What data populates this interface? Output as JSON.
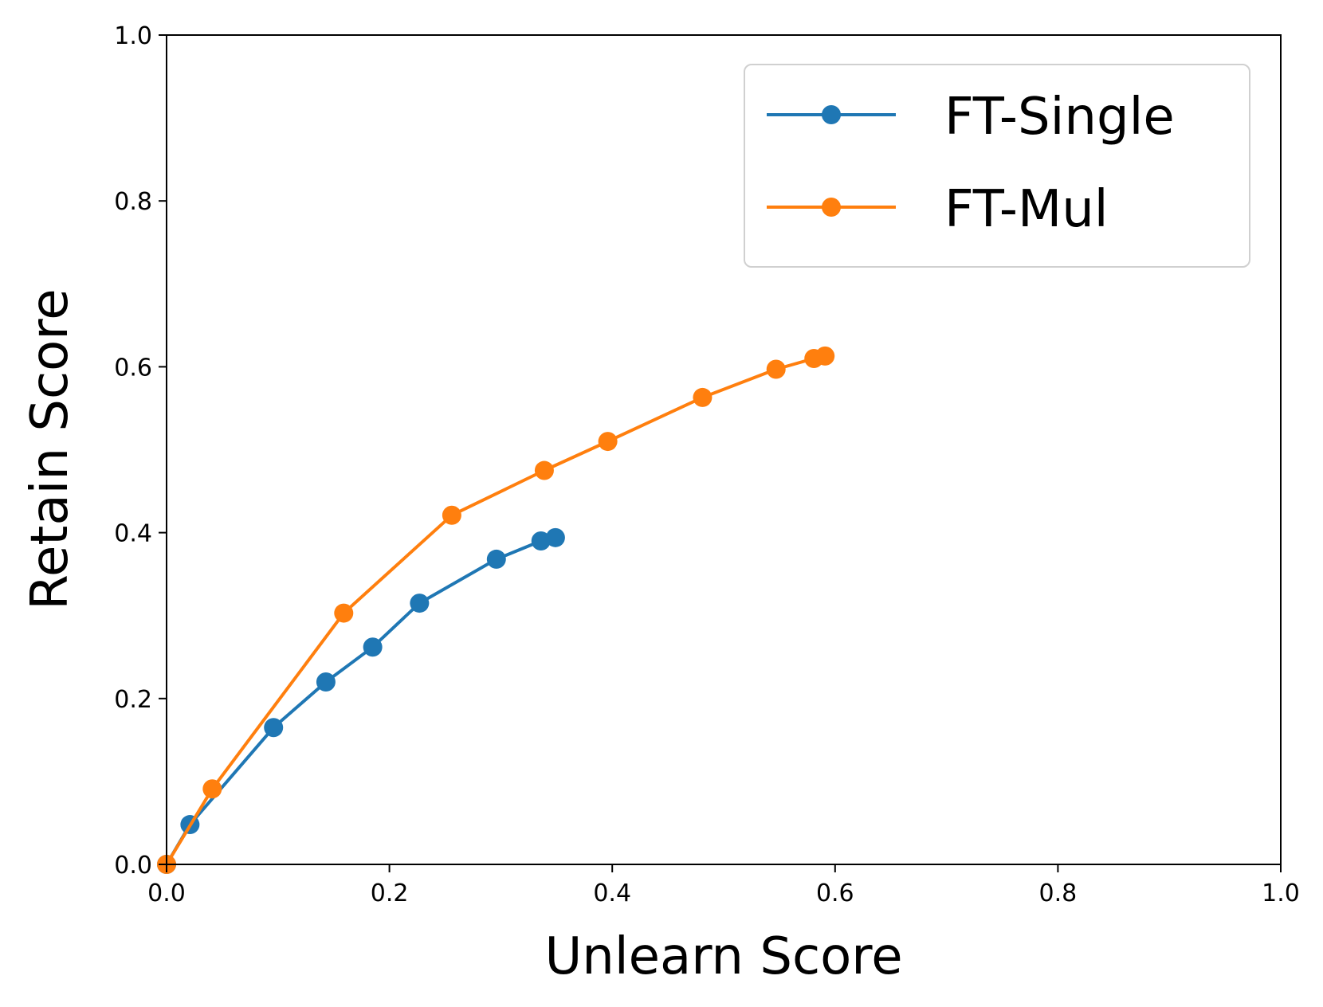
{
  "chart_data": {
    "type": "line",
    "title": "",
    "xlabel": "Unlearn Score",
    "ylabel": "Retain Score",
    "xlim": [
      0.0,
      1.0
    ],
    "ylim": [
      0.0,
      1.0
    ],
    "xticks": [
      "0.0",
      "0.2",
      "0.4",
      "0.6",
      "0.8",
      "1.0"
    ],
    "yticks": [
      "0.0",
      "0.2",
      "0.4",
      "0.6",
      "0.8",
      "1.0"
    ],
    "grid": false,
    "legend_position": "top-right",
    "series": [
      {
        "name": "FT-Single",
        "color": "#1f77b4",
        "marker": "circle",
        "x": [
          0.0,
          0.021,
          0.096,
          0.143,
          0.185,
          0.227,
          0.296,
          0.336,
          0.349
        ],
        "y": [
          0.0,
          0.048,
          0.165,
          0.22,
          0.262,
          0.315,
          0.368,
          0.39,
          0.394
        ]
      },
      {
        "name": "FT-Mul",
        "color": "#ff7f0e",
        "marker": "circle",
        "x": [
          0.0,
          0.041,
          0.159,
          0.256,
          0.339,
          0.396,
          0.481,
          0.547,
          0.581,
          0.591
        ],
        "y": [
          0.0,
          0.091,
          0.303,
          0.421,
          0.475,
          0.51,
          0.563,
          0.597,
          0.61,
          0.613
        ]
      }
    ]
  }
}
